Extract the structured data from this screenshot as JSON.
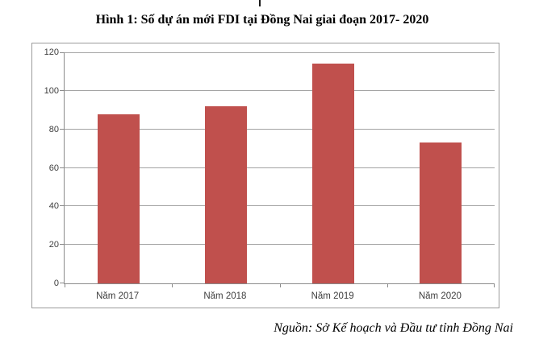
{
  "page": {
    "title": "Hình 1: Số dự án mới FDI tại Đồng Nai giai đoạn 2017- 2020",
    "source_note": "Nguồn: Sở Kế hoạch và Đầu tư tỉnh Đồng Nai"
  },
  "chart_data": {
    "type": "bar",
    "title": "Hình 1: Số dự án mới FDI tại Đồng Nai giai đoạn 2017- 2020",
    "categories": [
      "Năm 2017",
      "Năm 2018",
      "Năm 2019",
      "Năm 2020"
    ],
    "values": [
      88,
      92,
      114,
      73
    ],
    "xlabel": "",
    "ylabel": "",
    "ylim": [
      0,
      120
    ],
    "yticks": [
      0,
      20,
      40,
      60,
      80,
      100,
      120
    ],
    "grid": true,
    "legend_position": "none",
    "bar_color": "#c0504d",
    "gridline_color": "#a3a3a3",
    "axis_color": "#8a8a8a",
    "label_color": "#3d3d3d",
    "source": "Nguồn: Sở Kế hoạch và Đầu tư tỉnh Đồng Nai"
  }
}
